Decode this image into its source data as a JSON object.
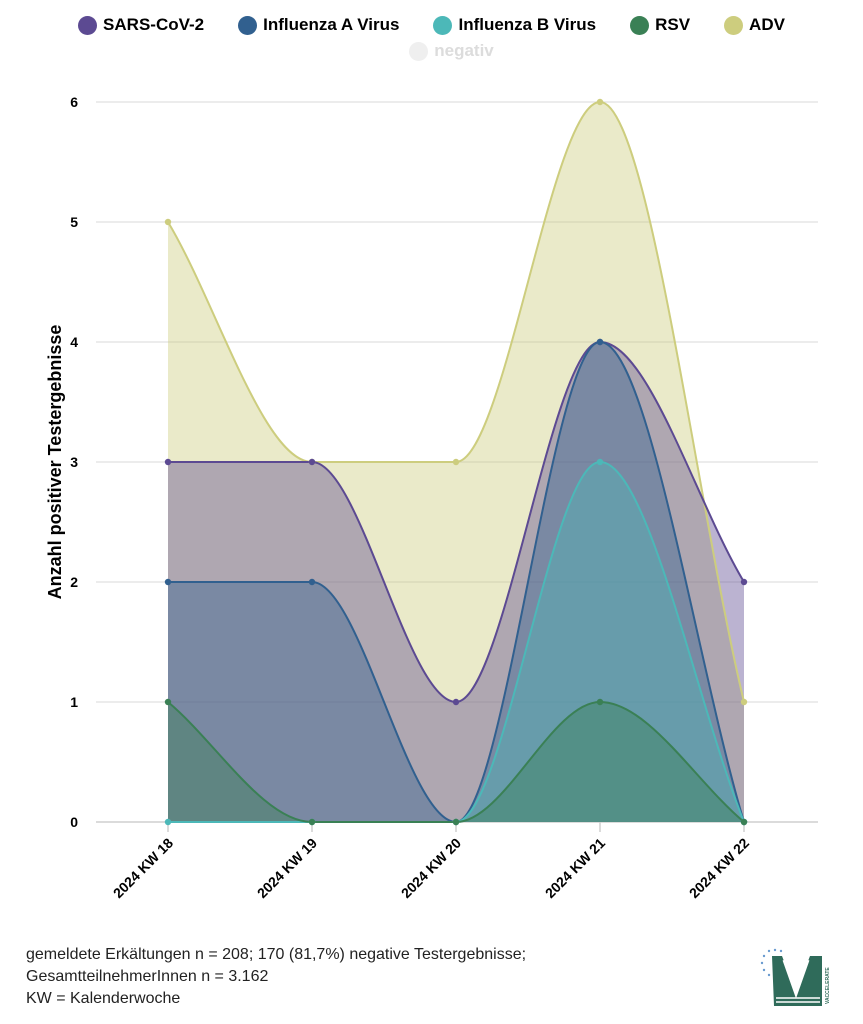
{
  "legend": {
    "items": [
      {
        "label": "SARS-CoV-2",
        "color": "#5c4a92",
        "active": true
      },
      {
        "label": "Influenza A Virus",
        "color": "#31608f",
        "active": true
      },
      {
        "label": "Influenza B Virus",
        "color": "#4cb8b8",
        "active": true
      },
      {
        "label": "RSV",
        "color": "#3a8055",
        "active": true
      },
      {
        "label": "ADV",
        "color": "#cdcd7e",
        "active": true
      },
      {
        "label": "negativ",
        "color": "#efefef",
        "active": false
      }
    ]
  },
  "chart_data": {
    "type": "area",
    "categories": [
      "2024 KW 18",
      "2024 KW 19",
      "2024 KW 20",
      "2024 KW 21",
      "2024 KW 22"
    ],
    "ylabel": "Anzahl positiver Testergebnisse",
    "ylim": [
      0,
      6
    ],
    "yticks": [
      "0",
      "1",
      "2",
      "3",
      "4",
      "5",
      "6"
    ],
    "grid": true,
    "legend_position": "top",
    "series": [
      {
        "name": "ADV",
        "color": "#cdcd7e",
        "values": [
          5,
          3,
          3,
          6,
          1
        ]
      },
      {
        "name": "SARS-CoV-2",
        "color": "#5c4a92",
        "values": [
          3,
          3,
          1,
          4,
          2
        ]
      },
      {
        "name": "Influenza A Virus",
        "color": "#31608f",
        "values": [
          2,
          2,
          0,
          4,
          0
        ]
      },
      {
        "name": "Influenza B Virus",
        "color": "#4cb8b8",
        "values": [
          0,
          0,
          0,
          3,
          0
        ]
      },
      {
        "name": "RSV",
        "color": "#3a8055",
        "values": [
          1,
          0,
          0,
          1,
          0
        ]
      }
    ]
  },
  "footnote": {
    "line1": "gemeldete Erkältungen n = 208; 170 (81,7%) negative Testergebnisse;",
    "line2": "GesamtteilnehmerInnen n = 3.162",
    "line3": "KW = Kalenderwoche"
  },
  "logo": {
    "text": "VACCELERATE",
    "color": "#2f6b5a"
  }
}
